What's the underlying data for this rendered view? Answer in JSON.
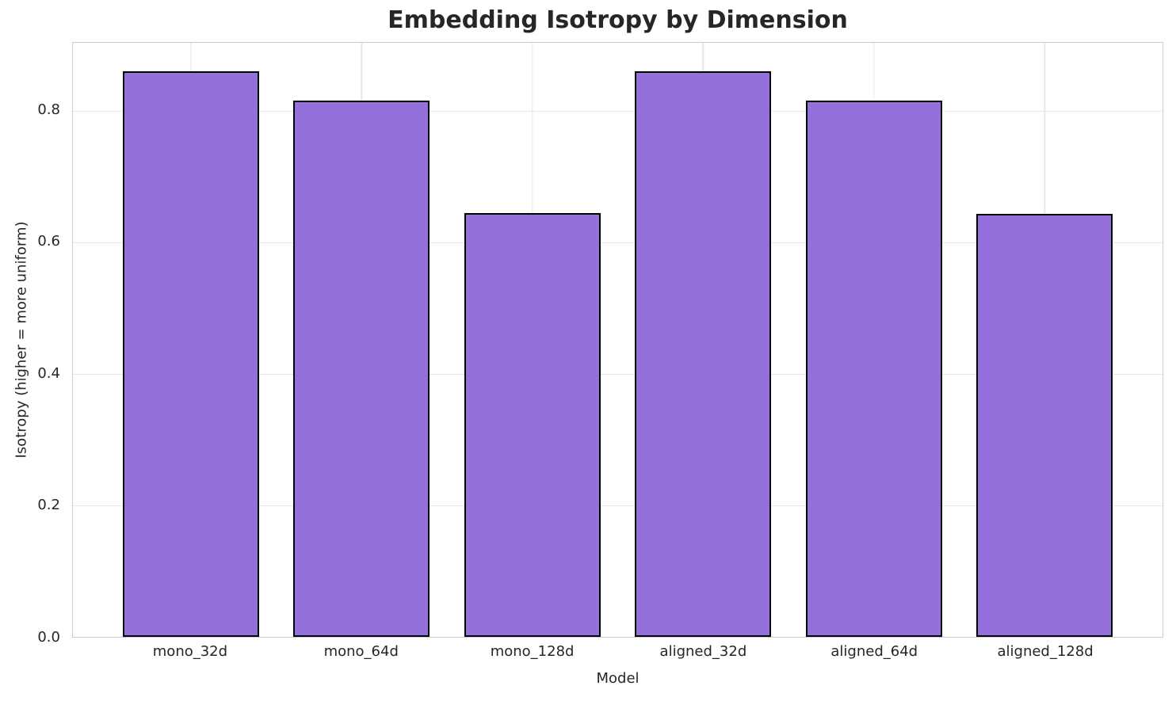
{
  "chart_data": {
    "type": "bar",
    "title": "Embedding Isotropy by Dimension",
    "xlabel": "Model",
    "ylabel": "Isotropy (higher = more uniform)",
    "categories": [
      "mono_32d",
      "mono_64d",
      "mono_128d",
      "aligned_32d",
      "aligned_64d",
      "aligned_128d"
    ],
    "values": [
      0.86,
      0.815,
      0.644,
      0.86,
      0.815,
      0.643
    ],
    "yticks": [
      0.0,
      0.2,
      0.4,
      0.6,
      0.8
    ],
    "ytick_labels": [
      "0.0",
      "0.2",
      "0.4",
      "0.6",
      "0.8"
    ],
    "ylim": [
      0,
      0.903
    ],
    "xlim": [
      -0.69,
      5.69
    ],
    "bar_width": 0.8,
    "grid": true,
    "legend": false,
    "colors": {
      "bar_fill": "#9370DB",
      "bar_edge": "#000000",
      "grid_line": "#e6e6e6",
      "spine": "#cccccc",
      "text": "#262626"
    }
  }
}
